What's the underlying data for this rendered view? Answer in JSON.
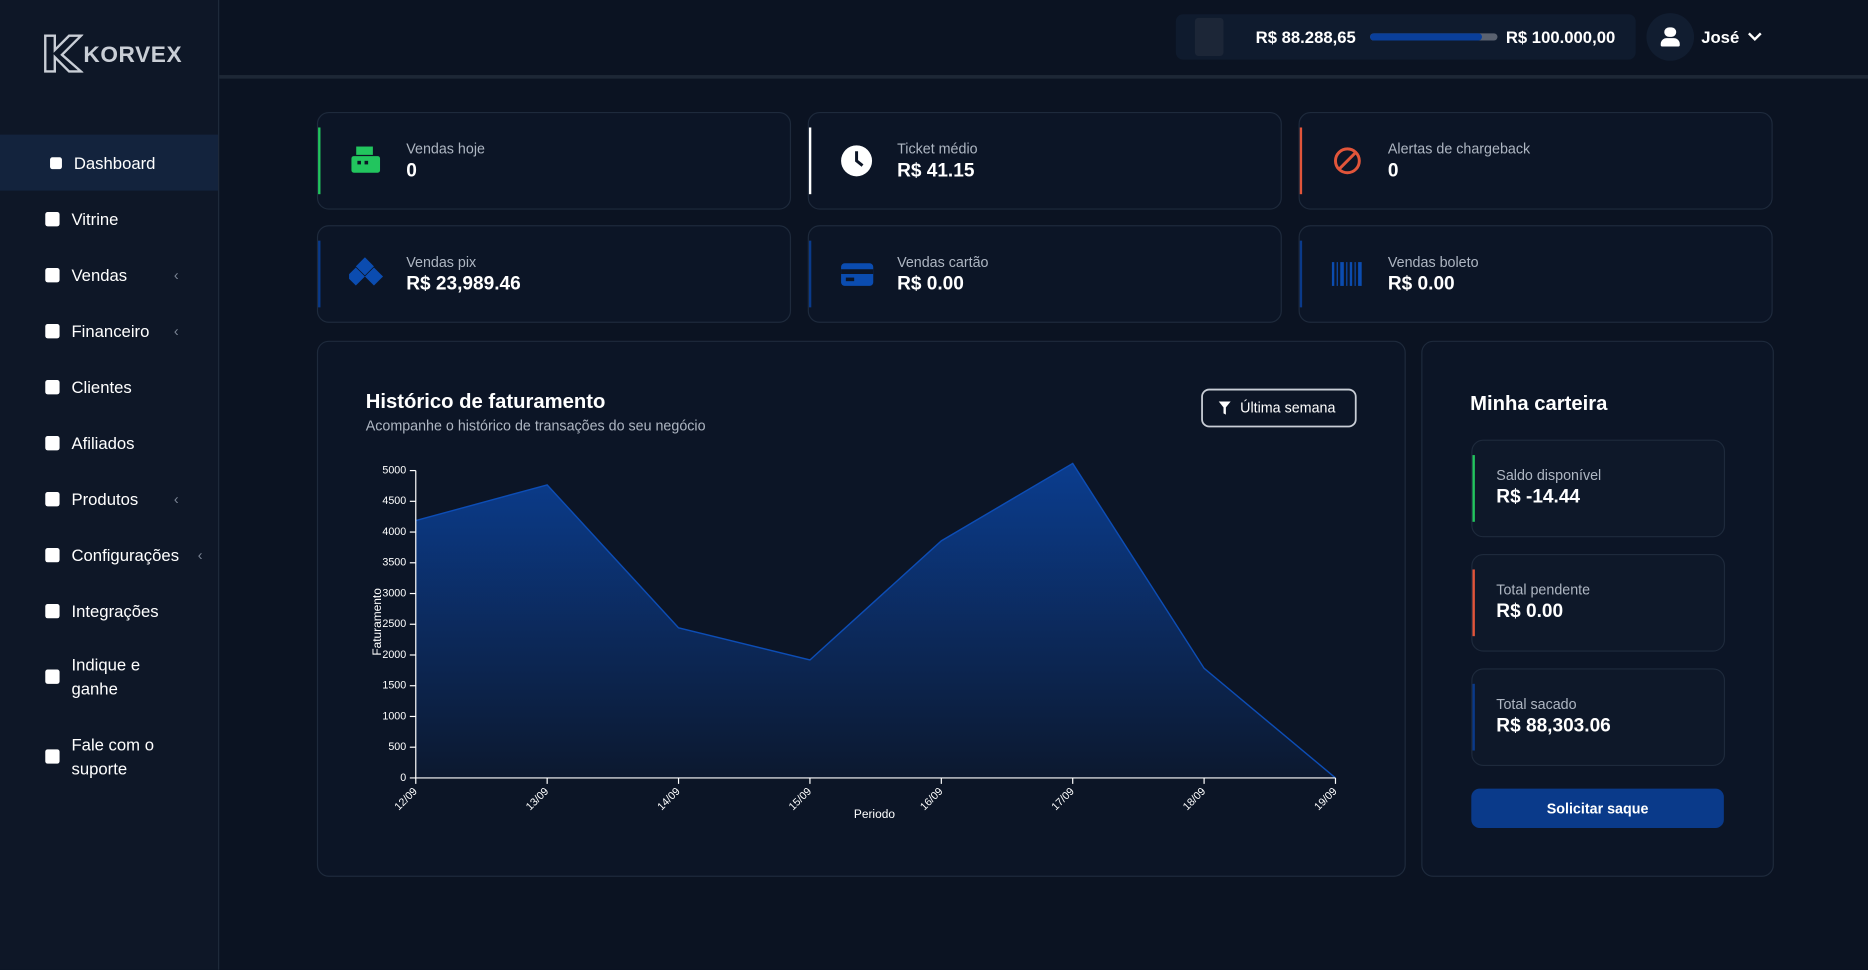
{
  "brand": "KORVEX",
  "nav": [
    {
      "label": "Dashboard"
    },
    {
      "label": "Vitrine"
    },
    {
      "label": "Vendas"
    },
    {
      "label": "Financeiro"
    },
    {
      "label": "Clientes"
    },
    {
      "label": "Afiliados"
    },
    {
      "label": "Produtos"
    },
    {
      "label": "Configurações"
    },
    {
      "label": "Integrações"
    },
    {
      "label": "Indique e ganhe"
    },
    {
      "label": "Fale com o suporte"
    }
  ],
  "header": {
    "balance": "R$ 88.288,65",
    "goal": "R$ 100.000,00",
    "user": "José"
  },
  "stats": [
    {
      "label": "Vendas hoje",
      "value": "0"
    },
    {
      "label": "Ticket médio",
      "value": "R$ 41.15"
    },
    {
      "label": "Alertas de chargeback",
      "value": "0"
    },
    {
      "label": "Vendas pix",
      "value": "R$ 23,989.46"
    },
    {
      "label": "Vendas cartão",
      "value": "R$ 0.00"
    },
    {
      "label": "Vendas boleto",
      "value": "R$ 0.00"
    }
  ],
  "chart_data": {
    "type": "area",
    "title": "Histórico de faturamento",
    "subtitle": "Acompanhe o histórico de transações do seu negócio",
    "filter": "Última semana",
    "x_label": "Periodo",
    "y_label": "Faturamento",
    "categories": [
      "12/09",
      "13/09",
      "14/09",
      "15/09",
      "16/09",
      "17/09",
      "18/09",
      "19/09"
    ],
    "values": [
      4186,
      4767,
      2442,
      1919,
      3857,
      5116,
      1783,
      0
    ],
    "color": "#0b3f94",
    "ylim": [
      0,
      5000
    ],
    "yticks": [
      0,
      500,
      1000,
      1500,
      2000,
      2500,
      3000,
      3500,
      4000,
      4500,
      5000
    ]
  },
  "wallet": {
    "title": "Minha carteira",
    "items": [
      {
        "label": "Saldo disponível",
        "value": "R$ -14.44"
      },
      {
        "label": "Total pendente",
        "value": "R$ 0.00"
      },
      {
        "label": "Total sacado",
        "value": "R$ 88,303.06"
      }
    ],
    "button": "Solicitar saque"
  }
}
